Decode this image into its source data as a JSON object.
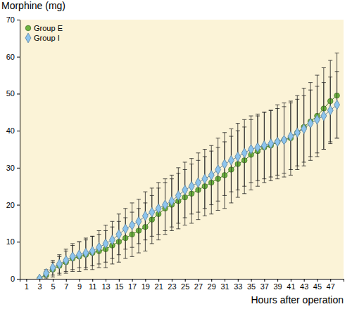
{
  "chart_data": {
    "type": "line",
    "y_label": "Morphine (mg)",
    "x_label": "Hours after operation",
    "x": [
      3,
      4,
      5,
      6,
      7,
      8,
      9,
      10,
      11,
      12,
      13,
      14,
      15,
      16,
      17,
      18,
      19,
      20,
      21,
      22,
      23,
      24,
      25,
      26,
      27,
      28,
      29,
      30,
      31,
      32,
      33,
      34,
      35,
      36,
      37,
      38,
      39,
      40,
      41,
      42,
      43,
      44,
      45,
      46,
      47,
      48
    ],
    "xlim": [
      0,
      49
    ],
    "xticks": [
      1,
      3,
      5,
      7,
      9,
      11,
      13,
      15,
      17,
      19,
      21,
      23,
      25,
      27,
      29,
      31,
      33,
      35,
      37,
      39,
      41,
      43,
      45,
      47
    ],
    "ylim": [
      0,
      70
    ],
    "yticks": [
      0,
      10,
      20,
      30,
      40,
      50,
      60,
      70
    ],
    "legend": "upper left",
    "grid": false,
    "series": [
      {
        "name": "Group E",
        "color": "#6cb33f",
        "marker": "circle",
        "line_style": "solid",
        "values": [
          0,
          1,
          2.5,
          3.5,
          4.5,
          5.5,
          6,
          6.5,
          7,
          7.5,
          8,
          9,
          10,
          11,
          12,
          13,
          14,
          16,
          17.5,
          19,
          20,
          21,
          22,
          23,
          24,
          25,
          26,
          27,
          28,
          29.5,
          31,
          32,
          33.5,
          34.5,
          35.5,
          36,
          37,
          37.5,
          38,
          39.5,
          41,
          42.5,
          44,
          46,
          48,
          49.5
        ],
        "errors": [
          0,
          1,
          2,
          2.5,
          3,
          3.5,
          4,
          4,
          4.5,
          4.5,
          5,
          5,
          5.5,
          5.5,
          6,
          6,
          6.5,
          6.5,
          7,
          7,
          7,
          7.5,
          7.5,
          8,
          8,
          8,
          8.5,
          8.5,
          9,
          9,
          9,
          9,
          9.5,
          9.5,
          9.5,
          9.5,
          10,
          10,
          10,
          10,
          10.5,
          10.5,
          11,
          11,
          11,
          11.5
        ]
      },
      {
        "name": "Group I",
        "color": "#8cc4ee",
        "marker": "diamond",
        "line_style": "solid",
        "values": [
          0,
          1.5,
          3,
          4,
          5,
          6,
          6.5,
          7,
          7.5,
          8.5,
          9.5,
          10.5,
          12,
          13.5,
          14.5,
          15.5,
          17,
          18,
          19,
          20,
          21,
          22.5,
          24,
          25,
          26,
          27,
          28,
          29.5,
          31,
          32,
          33,
          34,
          35,
          35.5,
          36,
          36.5,
          37,
          37.5,
          38.5,
          39.5,
          40.5,
          42,
          43,
          44,
          45.5,
          47
        ],
        "errors": [
          0,
          1,
          2,
          2.5,
          3,
          3.5,
          3.5,
          4,
          4,
          4.5,
          5,
          5,
          5.5,
          5.5,
          6,
          6,
          6.5,
          6.5,
          7,
          7,
          7,
          7.5,
          7.5,
          7.5,
          8,
          8,
          8,
          8.5,
          8.5,
          8.5,
          9,
          9,
          9,
          9,
          9,
          9,
          9,
          9,
          9,
          9,
          9,
          9,
          9,
          9,
          9,
          9
        ]
      }
    ]
  }
}
